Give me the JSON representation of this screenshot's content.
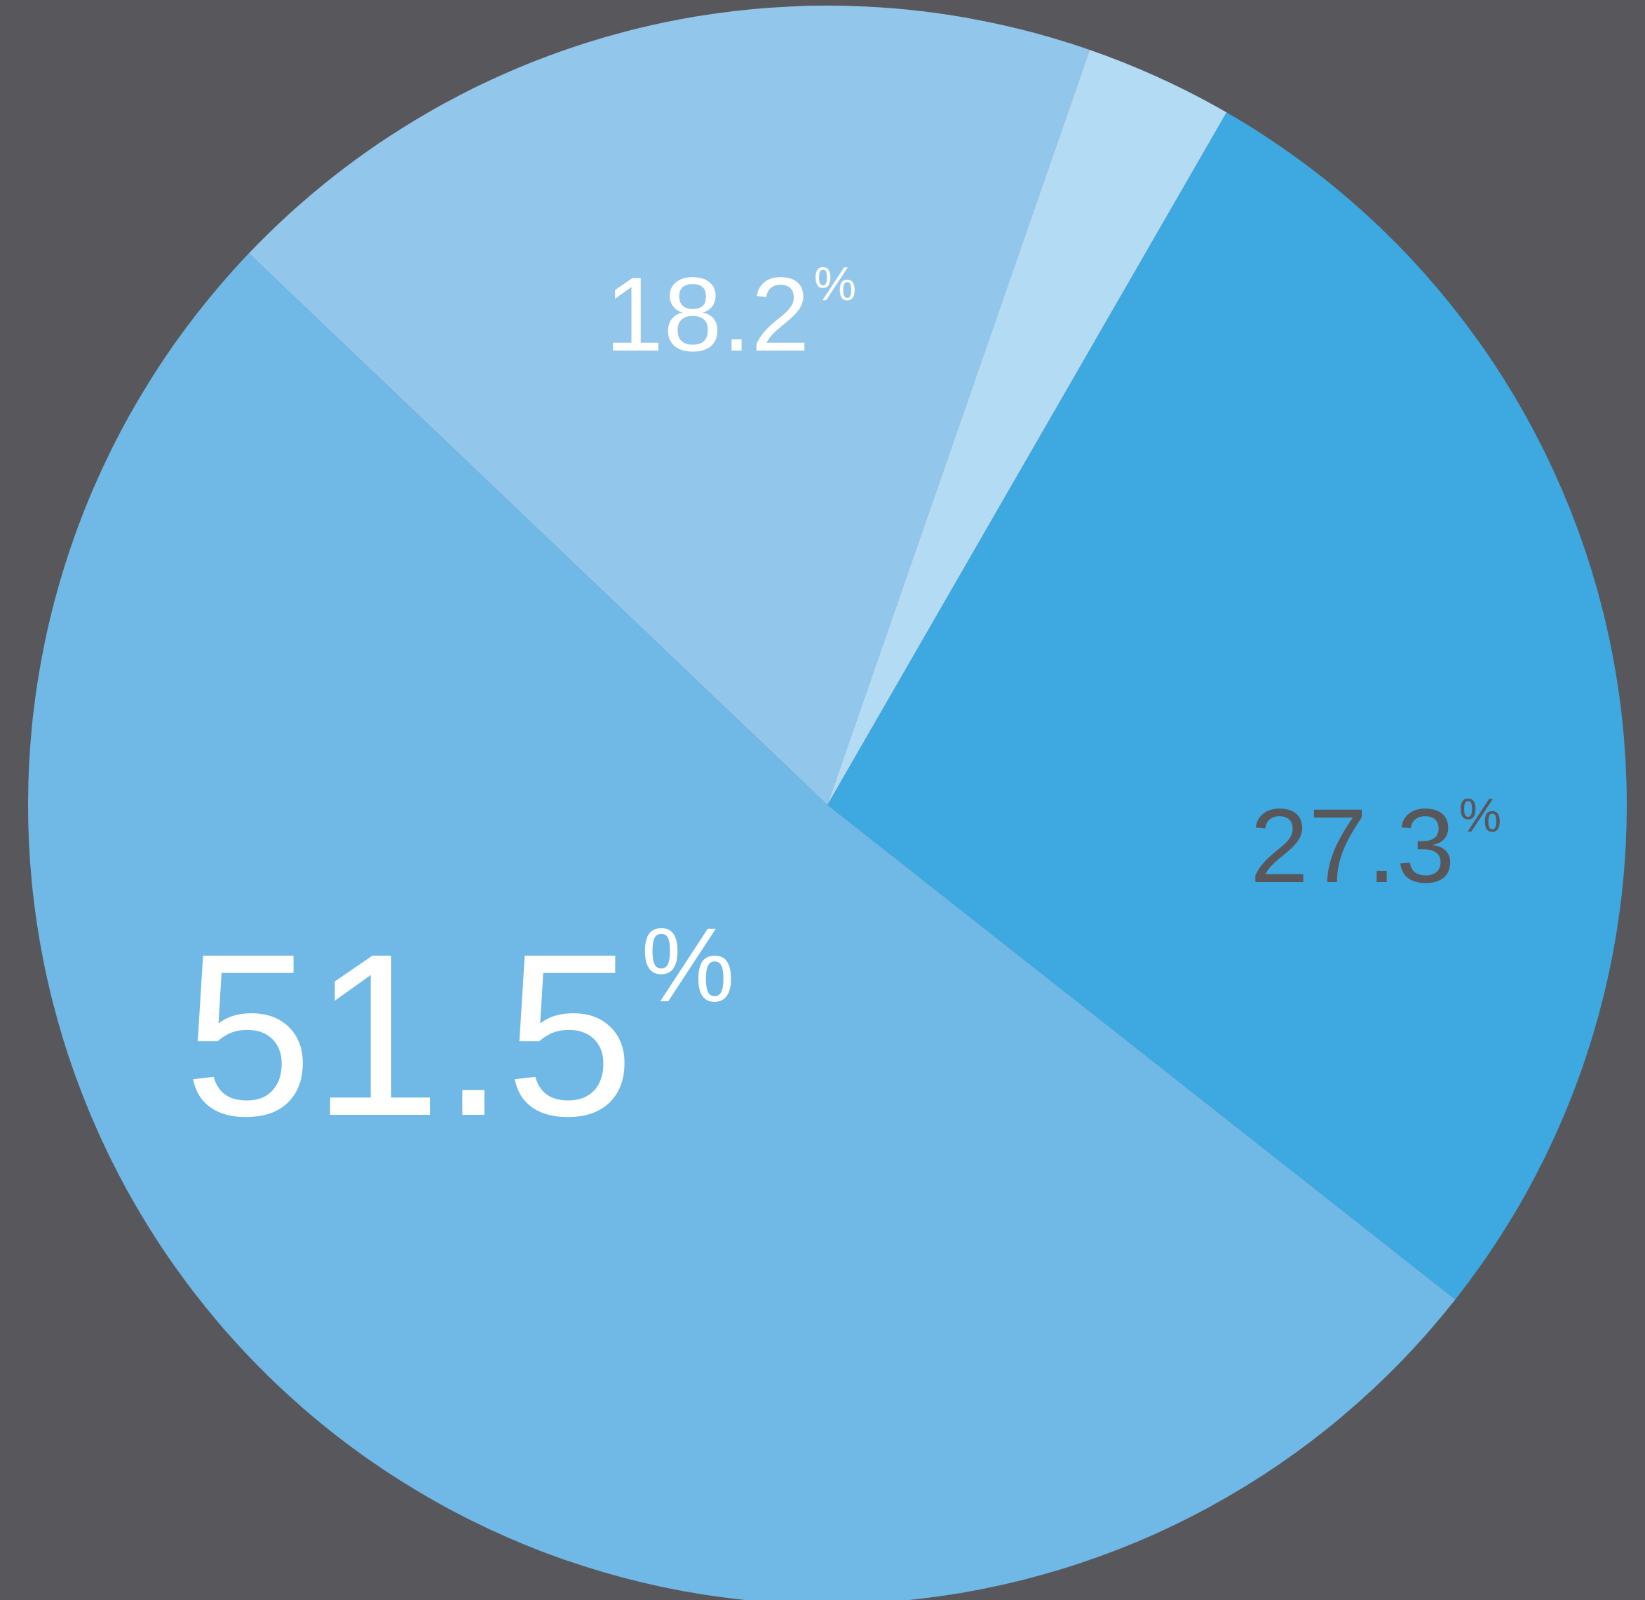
{
  "background_color": "#58575c",
  "chart_data": {
    "type": "pie",
    "title": "",
    "legend": "none",
    "slices": [
      {
        "value": 18.2,
        "label": "18.2",
        "unit": "%",
        "color": "#93c6eb",
        "label_color": "#ffffff"
      },
      {
        "value": 3.0,
        "label": "",
        "unit": "",
        "color": "#b4dbf4",
        "label_color": "#ffffff"
      },
      {
        "value": 27.3,
        "label": "27.3",
        "unit": "%",
        "color": "#3ea8e0",
        "label_color": "#58575c"
      },
      {
        "value": 51.5,
        "label": "51.5",
        "unit": "%",
        "color": "#70b8e6",
        "label_color": "#ffffff"
      }
    ]
  }
}
